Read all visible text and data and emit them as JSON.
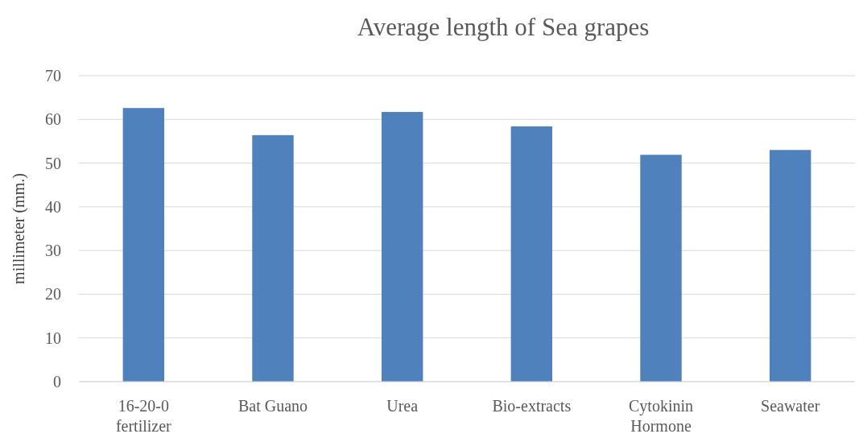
{
  "chart_data": {
    "type": "bar",
    "title": "Average length of Sea grapes",
    "ylabel": "millimeter (mm.)",
    "categories": [
      "16-20-0 fertilizer",
      "Bat Guano",
      "Urea",
      "Bio-extracts",
      "Cytokinin Hormone",
      "Seawater"
    ],
    "values": [
      62.6,
      56.4,
      61.7,
      58.4,
      51.9,
      53.0
    ],
    "color": "#4f81bd",
    "ylim": [
      0,
      70
    ],
    "yticks": [
      0,
      10,
      20,
      30,
      40,
      50,
      60,
      70
    ],
    "grid": "y"
  }
}
